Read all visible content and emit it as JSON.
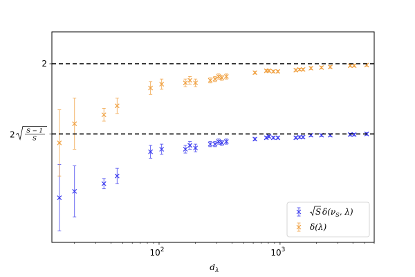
{
  "chart_data": {
    "type": "scatter",
    "xlabel": "d_λ",
    "xscale": "log",
    "xlim": [
      13,
      6000
    ],
    "ylim": [
      0.6,
      2.25
    ],
    "x_ticks": [
      {
        "value": 100,
        "base": "10",
        "exp": "2"
      },
      {
        "value": 1000,
        "base": "10",
        "exp": "3"
      }
    ],
    "y_ticks": [
      {
        "value": 2.0,
        "label": "2"
      },
      {
        "value": 1.45,
        "label": "2√((S−1)/S)",
        "prefix": "2",
        "num": "S − 1",
        "den": "S"
      }
    ],
    "reference_lines": [
      {
        "y": 2.0,
        "style": "dashed",
        "color": "#000000"
      },
      {
        "y": 1.45,
        "style": "dashed",
        "color": "#000000"
      }
    ],
    "legend_position": "lower-right",
    "series": [
      {
        "name": "√S δ(ν_S, λ)",
        "legend_label": {
          "sqrt": "S",
          "rest": "δ(ν",
          "sub": "S",
          "tail": ", λ)"
        },
        "color": "#3a3aee",
        "marker": "x",
        "points": [
          {
            "x": 15,
            "y": 0.95,
            "err": 0.26
          },
          {
            "x": 20,
            "y": 1.0,
            "err": 0.2
          },
          {
            "x": 35,
            "y": 1.06,
            "err": 0.04
          },
          {
            "x": 45,
            "y": 1.12,
            "err": 0.06
          },
          {
            "x": 85,
            "y": 1.31,
            "err": 0.05
          },
          {
            "x": 105,
            "y": 1.33,
            "err": 0.04
          },
          {
            "x": 165,
            "y": 1.33,
            "err": 0.03
          },
          {
            "x": 180,
            "y": 1.36,
            "err": 0.03
          },
          {
            "x": 200,
            "y": 1.34,
            "err": 0.03
          },
          {
            "x": 265,
            "y": 1.37,
            "err": 0.02
          },
          {
            "x": 290,
            "y": 1.37,
            "err": 0.02
          },
          {
            "x": 310,
            "y": 1.39,
            "err": 0.02
          },
          {
            "x": 330,
            "y": 1.38,
            "err": 0.02
          },
          {
            "x": 360,
            "y": 1.39,
            "err": 0.02
          },
          {
            "x": 620,
            "y": 1.41,
            "err": 0.01
          },
          {
            "x": 770,
            "y": 1.42,
            "err": 0.01
          },
          {
            "x": 810,
            "y": 1.43,
            "err": 0.01
          },
          {
            "x": 880,
            "y": 1.42,
            "err": 0.01
          },
          {
            "x": 960,
            "y": 1.42,
            "err": 0.01
          },
          {
            "x": 1350,
            "y": 1.42,
            "err": 0.01
          },
          {
            "x": 1450,
            "y": 1.425,
            "err": 0.01
          },
          {
            "x": 1550,
            "y": 1.425,
            "err": 0.01
          },
          {
            "x": 1800,
            "y": 1.44,
            "err": 0.01
          },
          {
            "x": 2200,
            "y": 1.44,
            "err": 0.01
          },
          {
            "x": 2600,
            "y": 1.44,
            "err": 0.01
          },
          {
            "x": 3800,
            "y": 1.445,
            "err": 0.01
          },
          {
            "x": 4100,
            "y": 1.445,
            "err": 0.01
          },
          {
            "x": 5200,
            "y": 1.45,
            "err": 0.01
          }
        ]
      },
      {
        "name": "δ(λ)",
        "legend_label": {
          "sqrt": "",
          "rest": "δ(λ)",
          "sub": "",
          "tail": ""
        },
        "color": "#f0a040",
        "marker": "x",
        "points": [
          {
            "x": 15,
            "y": 1.38,
            "err": 0.26
          },
          {
            "x": 20,
            "y": 1.53,
            "err": 0.2
          },
          {
            "x": 35,
            "y": 1.6,
            "err": 0.05
          },
          {
            "x": 45,
            "y": 1.67,
            "err": 0.06
          },
          {
            "x": 85,
            "y": 1.81,
            "err": 0.05
          },
          {
            "x": 105,
            "y": 1.84,
            "err": 0.04
          },
          {
            "x": 165,
            "y": 1.85,
            "err": 0.03
          },
          {
            "x": 180,
            "y": 1.87,
            "err": 0.03
          },
          {
            "x": 200,
            "y": 1.85,
            "err": 0.03
          },
          {
            "x": 265,
            "y": 1.87,
            "err": 0.02
          },
          {
            "x": 290,
            "y": 1.88,
            "err": 0.02
          },
          {
            "x": 310,
            "y": 1.9,
            "err": 0.02
          },
          {
            "x": 330,
            "y": 1.89,
            "err": 0.02
          },
          {
            "x": 360,
            "y": 1.9,
            "err": 0.02
          },
          {
            "x": 620,
            "y": 1.93,
            "err": 0.01
          },
          {
            "x": 770,
            "y": 1.945,
            "err": 0.01
          },
          {
            "x": 810,
            "y": 1.945,
            "err": 0.01
          },
          {
            "x": 880,
            "y": 1.94,
            "err": 0.01
          },
          {
            "x": 960,
            "y": 1.94,
            "err": 0.01
          },
          {
            "x": 1350,
            "y": 1.95,
            "err": 0.01
          },
          {
            "x": 1450,
            "y": 1.955,
            "err": 0.01
          },
          {
            "x": 1550,
            "y": 1.955,
            "err": 0.01
          },
          {
            "x": 1800,
            "y": 1.965,
            "err": 0.01
          },
          {
            "x": 2200,
            "y": 1.97,
            "err": 0.01
          },
          {
            "x": 2600,
            "y": 1.975,
            "err": 0.01
          },
          {
            "x": 3800,
            "y": 1.985,
            "err": 0.01
          },
          {
            "x": 4100,
            "y": 1.985,
            "err": 0.01
          },
          {
            "x": 5200,
            "y": 1.99,
            "err": 0.01
          }
        ]
      }
    ]
  }
}
